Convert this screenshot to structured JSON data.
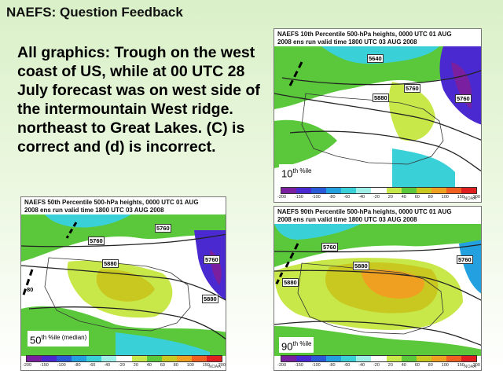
{
  "slide": {
    "title": "NAEFS: Question Feedback",
    "body": "All graphics: Trough on the west coast of US, while at 00 UTC 28 July forecast was on west side of the intermountain West ridge. northeast to Great Lakes. (C) is correct and (d) is incorrect."
  },
  "colorbar_ticks": [
    "-200",
    "-150",
    "-100",
    "-80",
    "-60",
    "-40",
    "-20",
    "20",
    "40",
    "60",
    "80",
    "100",
    "150",
    "200"
  ],
  "colorbar_colors": [
    "#7a1fa0",
    "#4a2ad0",
    "#2a5ad8",
    "#23a0e0",
    "#3ad0d8",
    "#9ff0e8",
    "#ffffff",
    "#c8e84a",
    "#5ac83a",
    "#c8c820",
    "#f0a020",
    "#f06020",
    "#e02020"
  ],
  "noaa": "NOAA",
  "panels": {
    "p10": {
      "header": "NAEFS 10th Percentile 500-hPa heights, 0000 UTC  01 AUG\n2008 ens run valid time 1800 UTC  03 AUG 2008",
      "label_num": "10",
      "label_suffix": "th %ile",
      "contours": [
        "5640",
        "5760",
        "5880",
        "5760"
      ]
    },
    "p50": {
      "header": "NAEFS 50th Percentile 500-hPa heights, 0000 UTC  01 AUG\n2008 ens run valid time 1800 UTC  03 AUG 2008",
      "label_num": "50",
      "label_suffix": "th %ile (median)",
      "contours": [
        "5760",
        "5760",
        "5880",
        "5760",
        "5880",
        "80"
      ]
    },
    "p90": {
      "header": "NAEFS 90th Percentile 500-hPa heights, 0000 UTC  01 AUG\n2008 ens run valid time 1800 UTC  03 AUG 2008",
      "label_num": "90",
      "label_suffix": "th %ile",
      "contours": [
        "5760",
        "5880",
        "5760",
        "5880"
      ]
    }
  }
}
